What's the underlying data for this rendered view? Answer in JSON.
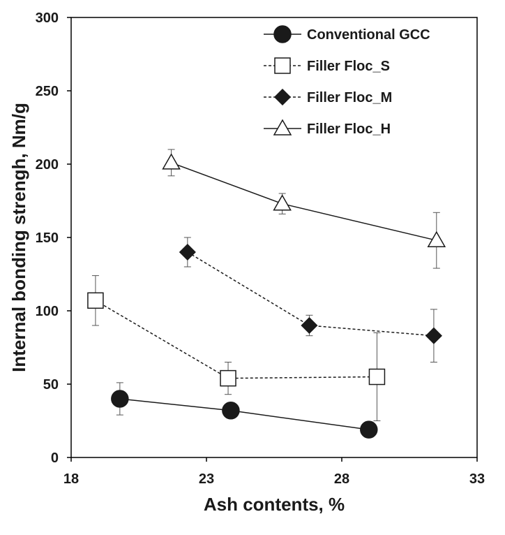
{
  "chart_data": {
    "type": "scatter",
    "title": "",
    "xlabel": "Ash contents, %",
    "ylabel": "Internal bonding strengh, Nm/g",
    "xlim": [
      18,
      33
    ],
    "ylim": [
      0,
      300
    ],
    "xticks": [
      "18",
      "23",
      "28",
      "33"
    ],
    "yticks": [
      "0",
      "50",
      "100",
      "150",
      "200",
      "250",
      "300"
    ],
    "legend_position": "top-right",
    "series": [
      {
        "name": "Conventional GCC",
        "marker": "circle-filled",
        "line": "solid",
        "x": [
          19.8,
          23.9,
          29.0
        ],
        "y": [
          40,
          32,
          19
        ],
        "err": [
          11,
          0,
          0
        ]
      },
      {
        "name": "Filler Floc_S",
        "marker": "square-open",
        "line": "dashed",
        "x": [
          18.9,
          23.8,
          29.3
        ],
        "y": [
          107,
          54,
          55
        ],
        "err": [
          17,
          11,
          30
        ]
      },
      {
        "name": "Filler Floc_M",
        "marker": "diamond-filled",
        "line": "dashed",
        "x": [
          22.3,
          26.8,
          31.4
        ],
        "y": [
          140,
          90,
          83
        ],
        "err": [
          10,
          7,
          18
        ]
      },
      {
        "name": "Filler Floc_H",
        "marker": "triangle-open",
        "line": "solid",
        "x": [
          21.7,
          25.8,
          31.5
        ],
        "y": [
          201,
          173,
          148
        ],
        "err": [
          9,
          7,
          19
        ]
      }
    ]
  }
}
